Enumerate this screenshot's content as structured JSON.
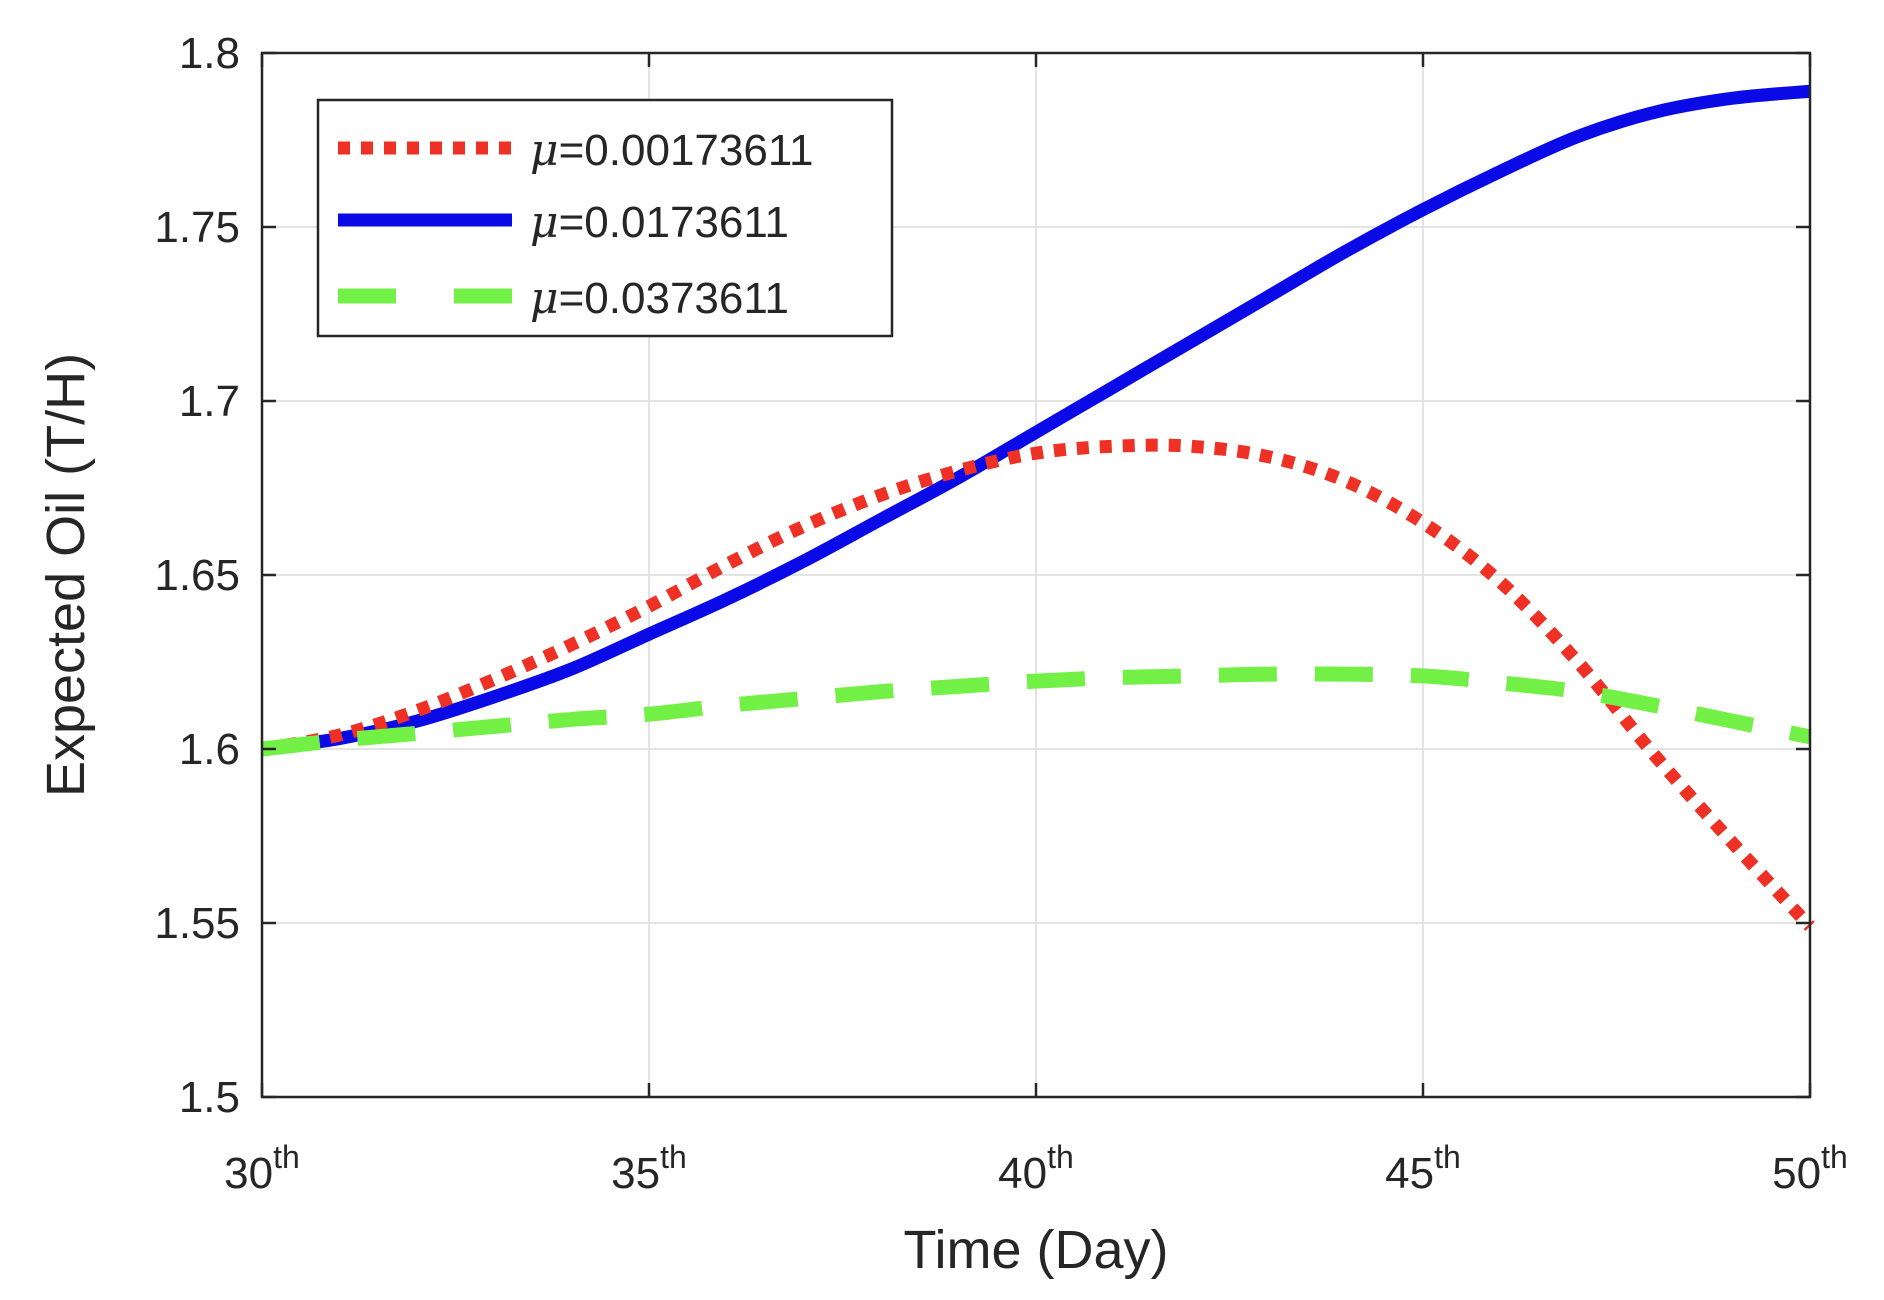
{
  "chart_data": {
    "type": "line",
    "xlabel": "Time (Day)",
    "ylabel": "Expected Oil (T/H)",
    "xlim": [
      30,
      50
    ],
    "ylim": [
      1.5,
      1.8
    ],
    "grid": true,
    "legend_position": "top-left",
    "xticks": [
      {
        "value": 30,
        "base": "30",
        "sup": "th"
      },
      {
        "value": 35,
        "base": "35",
        "sup": "th"
      },
      {
        "value": 40,
        "base": "40",
        "sup": "th"
      },
      {
        "value": 45,
        "base": "45",
        "sup": "th"
      },
      {
        "value": 50,
        "base": "50",
        "sup": "th"
      }
    ],
    "yticks": [
      {
        "value": 1.5,
        "label": "1.5"
      },
      {
        "value": 1.55,
        "label": "1.55"
      },
      {
        "value": 1.6,
        "label": "1.6"
      },
      {
        "value": 1.65,
        "label": "1.65"
      },
      {
        "value": 1.7,
        "label": "1.7"
      },
      {
        "value": 1.75,
        "label": "1.75"
      },
      {
        "value": 1.8,
        "label": "1.8"
      }
    ],
    "series": [
      {
        "name": "μ=0.00173611",
        "symbol": "μ",
        "value_text": "=0.00173611",
        "color": "#EE3124",
        "style": "dotted",
        "x": [
          30,
          31,
          32,
          33,
          34,
          35,
          36,
          37,
          38,
          39,
          40,
          41,
          42,
          43,
          44,
          45,
          46,
          47,
          48,
          49,
          50
        ],
        "y": [
          1.6,
          1.604,
          1.611,
          1.62,
          1.63,
          1.641,
          1.653,
          1.664,
          1.673,
          1.68,
          1.685,
          1.687,
          1.687,
          1.684,
          1.677,
          1.665,
          1.648,
          1.625,
          1.598,
          1.573,
          1.549
        ]
      },
      {
        "name": "μ=0.0173611",
        "symbol": "μ",
        "value_text": "=0.0173611",
        "color": "#0A0AE6",
        "style": "solid",
        "x": [
          30,
          31,
          32,
          33,
          34,
          35,
          36,
          37,
          38,
          39,
          40,
          41,
          42,
          43,
          44,
          45,
          46,
          47,
          48,
          49,
          50
        ],
        "y": [
          1.6,
          1.603,
          1.608,
          1.615,
          1.623,
          1.633,
          1.643,
          1.654,
          1.666,
          1.678,
          1.691,
          1.704,
          1.717,
          1.73,
          1.743,
          1.755,
          1.766,
          1.776,
          1.783,
          1.787,
          1.789
        ]
      },
      {
        "name": "μ=0.0373611",
        "symbol": "μ",
        "value_text": "=0.0373611",
        "color": "#73F046",
        "style": "dashed",
        "x": [
          30,
          31,
          32,
          33,
          34,
          35,
          36,
          37,
          38,
          39,
          40,
          41,
          42,
          43,
          44,
          45,
          46,
          47,
          48,
          49,
          50
        ],
        "y": [
          1.6,
          1.6025,
          1.6045,
          1.6065,
          1.6085,
          1.61,
          1.6125,
          1.6145,
          1.6165,
          1.618,
          1.6195,
          1.6205,
          1.621,
          1.6215,
          1.6215,
          1.621,
          1.619,
          1.6165,
          1.6125,
          1.608,
          1.6035
        ]
      }
    ]
  }
}
